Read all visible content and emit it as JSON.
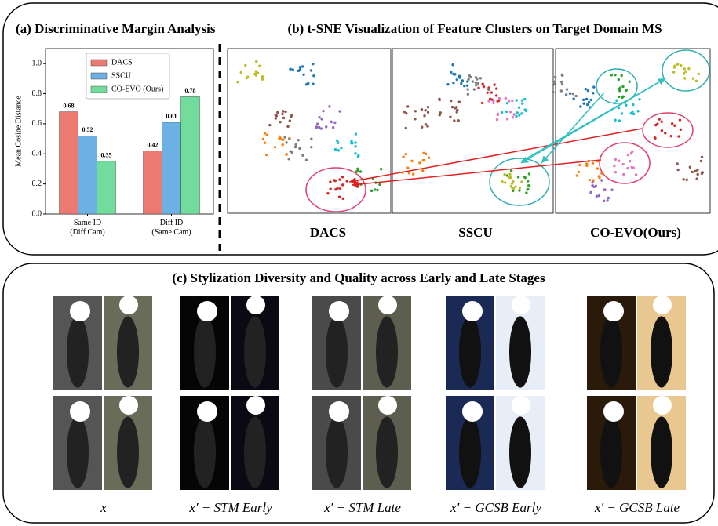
{
  "chart_data": {
    "type": "bar",
    "title": "(a) Discriminative Margin Analysis",
    "categories": [
      "Same ID\n(Diff Cam)",
      "Diff ID\n(Same Cam)"
    ],
    "series": [
      {
        "name": "DACS",
        "color": "#ec7a72",
        "values": [
          0.68,
          0.42
        ]
      },
      {
        "name": "SSCU",
        "color": "#6cb0e4",
        "values": [
          0.52,
          0.61
        ]
      },
      {
        "name": "CO-EVO (Ours)",
        "color": "#72dc9c",
        "values": [
          0.35,
          0.78
        ]
      }
    ],
    "ylabel": "Mean Cosine Distance",
    "ylim": [
      0,
      1.1
    ],
    "yticks": [
      {
        "value": 0,
        "label": "0.0"
      },
      0.2,
      0.4,
      0.6,
      0.8,
      {
        "value": 1,
        "label": "1.0"
      }
    ],
    "legend": "top-center"
  },
  "panel_b": {
    "title": "(b) t-SNE Visualization of Feature Clusters on Target Domain MS",
    "plots": [
      "DACS",
      "SSCU",
      "CO-EVO(Ours)"
    ]
  },
  "panel_c": {
    "title": "(c)  Stylization Diversity and Quality across Early and Late Stages",
    "labels": [
      "x",
      "x′ − STM Early",
      "x′ − STM Late",
      "x′ − GCSB Early",
      "x′ − GCSB Late"
    ]
  }
}
